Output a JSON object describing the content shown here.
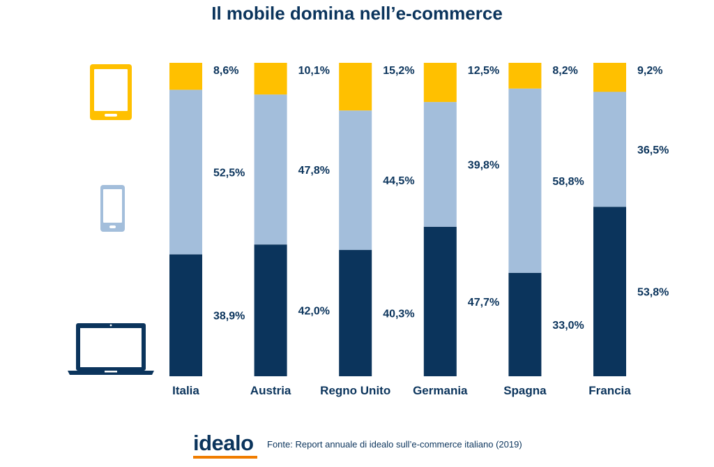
{
  "title": "Il mobile domina nell’e-commerce",
  "colors": {
    "tablet": "#ffc000",
    "smartphone": "#a3bedb",
    "desktop": "#0b345c",
    "text": "#0b345c",
    "accent": "#f07d00"
  },
  "icons": [
    "tablet-icon",
    "smartphone-icon",
    "laptop-icon"
  ],
  "footer": {
    "logo": "idealo",
    "source": "Fonte: Report annuale di idealo sull’e-commerce italiano (2019)"
  },
  "chart_data": {
    "type": "bar",
    "stacked": true,
    "percent_stacked": true,
    "title": "Il mobile domina nell’e-commerce",
    "categories": [
      "Italia",
      "Austria",
      "Regno Unito",
      "Germania",
      "Spagna",
      "Francia"
    ],
    "series": [
      {
        "values": [
          38.9,
          42.0,
          40.3,
          47.7,
          33.0,
          53.8
        ],
        "labels": [
          "38,9%",
          "42,0%",
          "40,3%",
          "47,7%",
          "33,0%",
          "53,8%"
        ],
        "color": "#0b345c"
      },
      {
        "values": [
          52.5,
          47.8,
          44.5,
          39.8,
          58.8,
          36.5
        ],
        "labels": [
          "52,5%",
          "47,8%",
          "44,5%",
          "39,8%",
          "58,8%",
          "36,5%"
        ],
        "color": "#a3bedb"
      },
      {
        "values": [
          8.6,
          10.1,
          15.2,
          12.5,
          8.2,
          9.2
        ],
        "labels": [
          "8,6%",
          "10,1%",
          "15,2%",
          "12,5%",
          "8,2%",
          "9,2%"
        ],
        "color": "#ffc000"
      }
    ],
    "ylim": [
      0,
      100
    ],
    "grid": false,
    "legend": "icons-left"
  }
}
